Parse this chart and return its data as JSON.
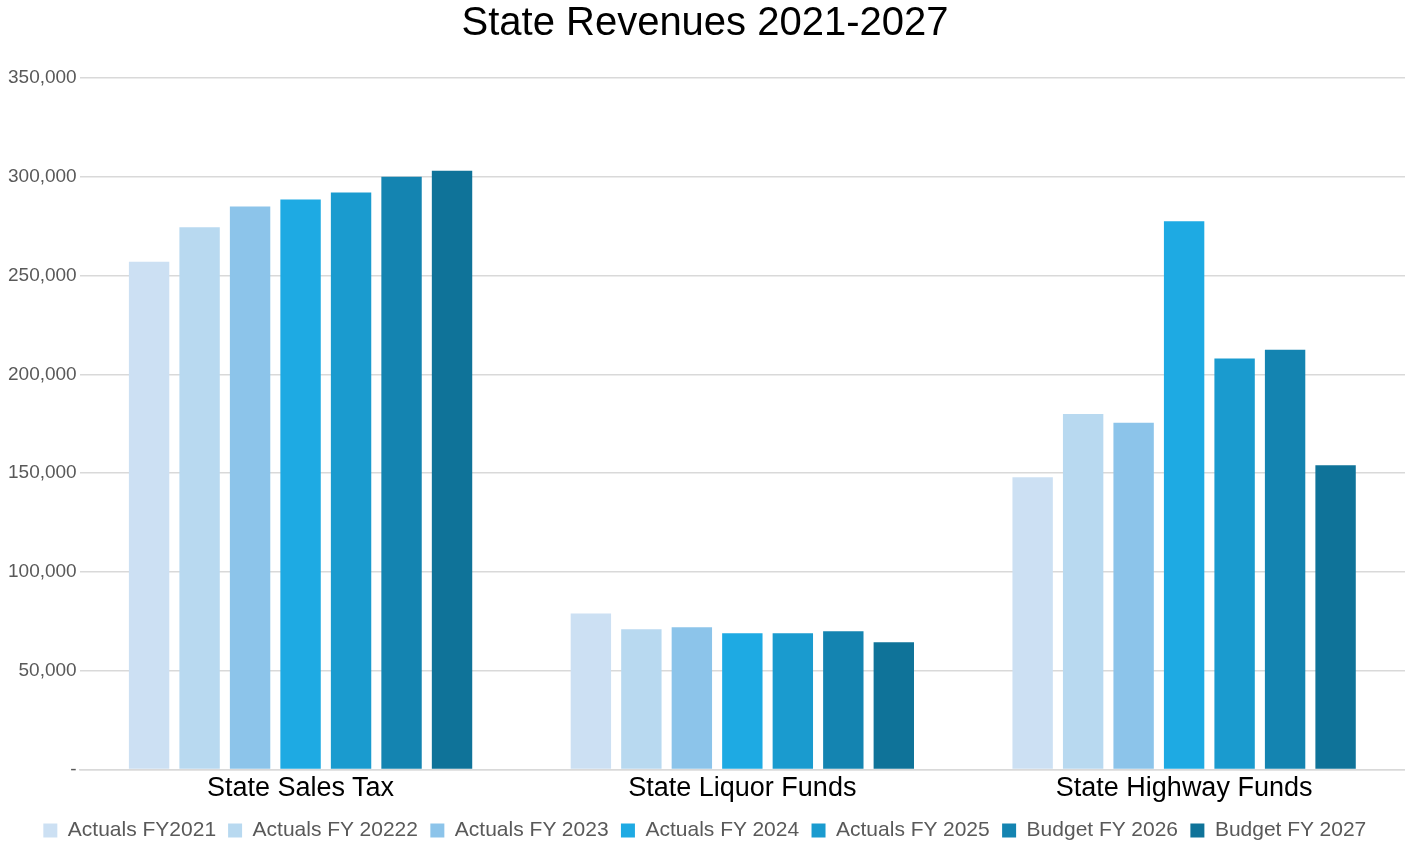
{
  "chart_data": {
    "type": "bar",
    "title": "State Revenues 2021-2027",
    "categories": [
      "State Sales Tax",
      "State Liquor Funds",
      "State Highway Funds"
    ],
    "series": [
      {
        "name": "Actuals FY2021",
        "color": "#cce0f3",
        "values": [
          257000,
          79000,
          148000
        ]
      },
      {
        "name": "Actuals FY 20222",
        "color": "#b8d9f0",
        "values": [
          274500,
          71000,
          180000
        ]
      },
      {
        "name": "Actuals FY 2023",
        "color": "#8cc4ea",
        "values": [
          285000,
          72000,
          175500
        ]
      },
      {
        "name": "Actuals FY 2024",
        "color": "#1eaae3",
        "values": [
          288500,
          69000,
          277500
        ]
      },
      {
        "name": "Actuals FY 2025",
        "color": "#1a9bcf",
        "values": [
          292000,
          69000,
          208000
        ]
      },
      {
        "name": "Budget FY 2026",
        "color": "#1484b1",
        "values": [
          300000,
          70000,
          212500
        ]
      },
      {
        "name": "Budget FY 2027",
        "color": "#0f7399",
        "values": [
          303000,
          64500,
          154000
        ]
      }
    ],
    "ylim": [
      0,
      350000
    ],
    "yticks": [
      {
        "value": 0,
        "label": "-"
      },
      {
        "value": 50000,
        "label": "50,000"
      },
      {
        "value": 100000,
        "label": "100,000"
      },
      {
        "value": 150000,
        "label": "150,000"
      },
      {
        "value": 200000,
        "label": "200,000"
      },
      {
        "value": 250000,
        "label": "250,000"
      },
      {
        "value": 300000,
        "label": "300,000"
      },
      {
        "value": 350000,
        "label": "350,000"
      }
    ],
    "grid": "y",
    "legend": "bottom"
  }
}
